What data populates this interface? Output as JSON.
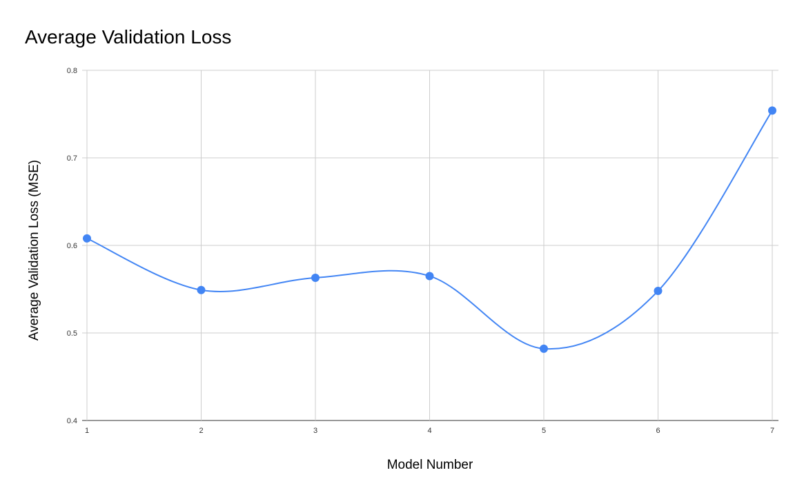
{
  "chart_data": {
    "type": "line",
    "title": "Average Validation Loss",
    "xlabel": "Model Number",
    "ylabel": "Average Validation Loss (MSE)",
    "x": [
      1,
      2,
      3,
      4,
      5,
      6,
      7
    ],
    "series": [
      {
        "values": [
          0.608,
          0.549,
          0.563,
          0.565,
          0.482,
          0.548,
          0.754
        ],
        "color": "#4285f4"
      }
    ],
    "xlim": [
      1,
      7
    ],
    "ylim": [
      0.4,
      0.8
    ],
    "x_ticks": [
      "1",
      "2",
      "3",
      "4",
      "5",
      "6",
      "7"
    ],
    "y_ticks": [
      "0.8",
      "0.7",
      "0.6",
      "0.5",
      "0.4"
    ],
    "y_tick_values": [
      0.8,
      0.7,
      0.6,
      0.5,
      0.4
    ],
    "grid": true,
    "smooth": true,
    "markers": true,
    "legend": "none"
  }
}
